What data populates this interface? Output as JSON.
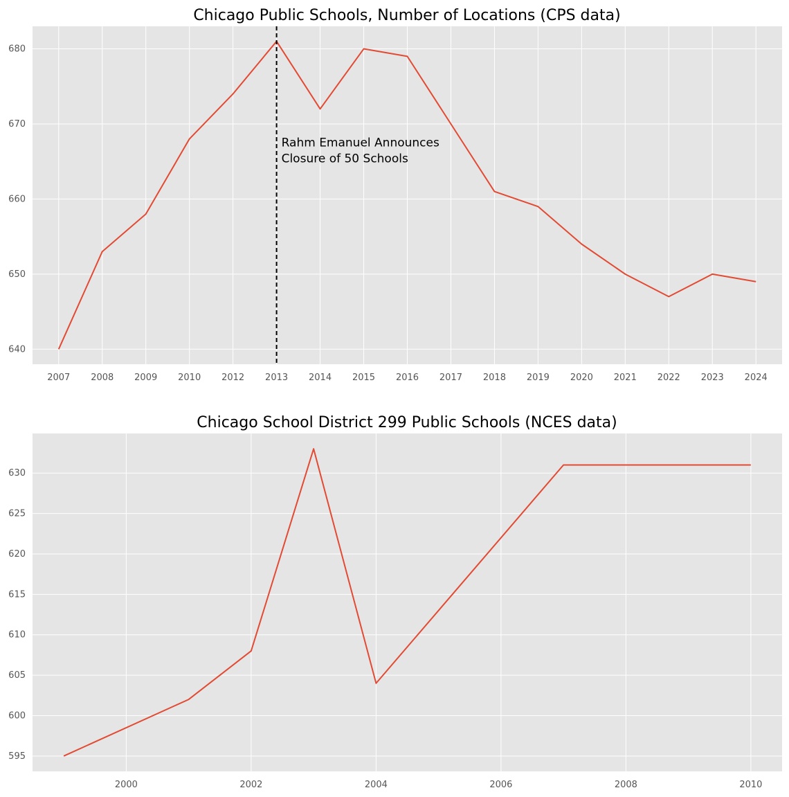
{
  "colors": {
    "panel_background": "#e5e5e5",
    "grid": "#ffffff",
    "line": "#e24a33",
    "annotation_line": "#000000"
  },
  "chart_data": [
    {
      "type": "line",
      "title": "Chicago Public Schools, Number of Locations (CPS data)",
      "xlabel": "",
      "ylabel": "",
      "x_scale": "categorical",
      "categories": [
        "2007",
        "2008",
        "2009",
        "2010",
        "2012",
        "2013",
        "2014",
        "2015",
        "2016",
        "2017",
        "2018",
        "2019",
        "2020",
        "2021",
        "2022",
        "2023",
        "2024"
      ],
      "series": [
        {
          "values": [
            640,
            653,
            658,
            668,
            674,
            681,
            672,
            680,
            679,
            670,
            661,
            659,
            654,
            650,
            647,
            650,
            649
          ]
        }
      ],
      "ylim": [
        638,
        683
      ],
      "yticks": [
        640,
        650,
        660,
        670,
        680
      ],
      "grid": true,
      "annotations": [
        {
          "type": "vline",
          "style": "dashed",
          "x": "2013",
          "lines": [
            "Rahm Emanuel Announces",
            "Closure of 50 Schools"
          ]
        }
      ]
    },
    {
      "type": "line",
      "title": "Chicago School District 299 Public Schools (NCES data)",
      "xlabel": "",
      "ylabel": "",
      "x_scale": "linear",
      "x": [
        1999,
        2001,
        2002,
        2003,
        2004,
        2007,
        2010
      ],
      "series": [
        {
          "values": [
            595,
            602,
            608,
            633,
            604,
            631,
            631
          ]
        }
      ],
      "xlim": [
        1998.5,
        2010.5
      ],
      "xticks": [
        2000,
        2002,
        2004,
        2006,
        2008,
        2010
      ],
      "ylim": [
        593.1,
        634.9
      ],
      "yticks": [
        595,
        600,
        605,
        610,
        615,
        620,
        625,
        630
      ],
      "grid": true
    }
  ]
}
